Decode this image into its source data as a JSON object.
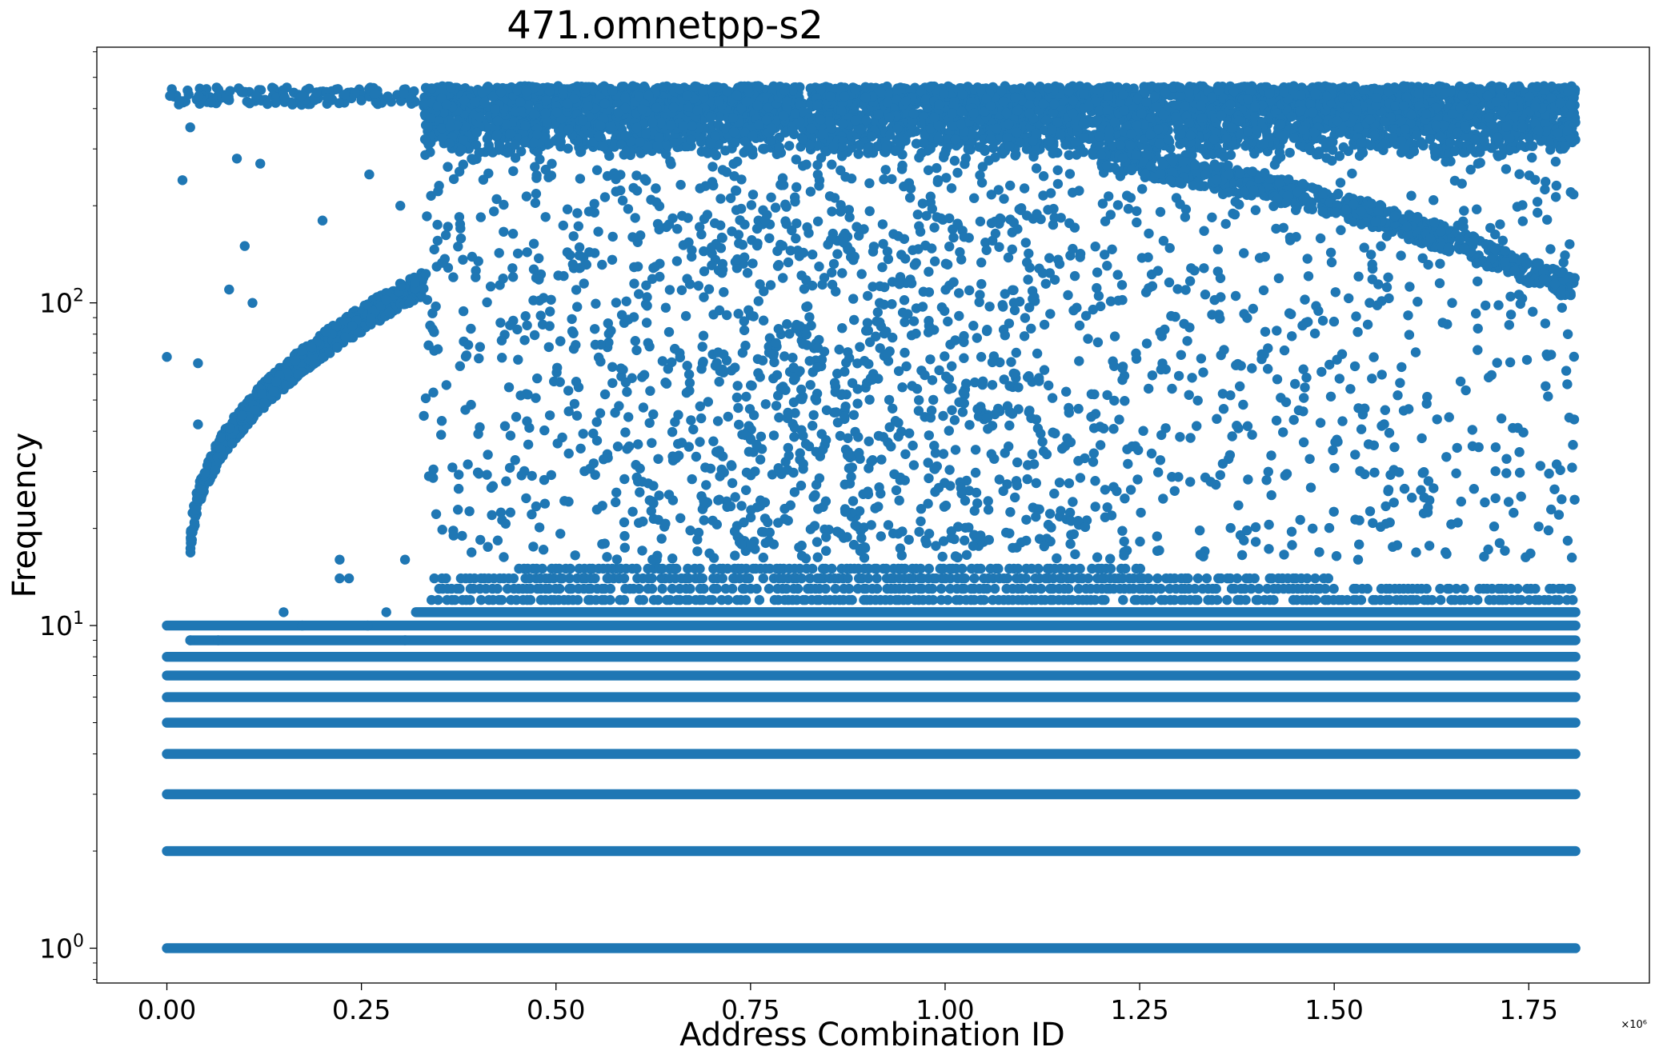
{
  "chart_data": {
    "type": "scatter",
    "title": "471.omnetpp-s2",
    "xlabel": "Address Combination ID",
    "ylabel": "Frequency",
    "y_scale": "log",
    "x_offset_label": "×10⁶",
    "xlim": [
      -0.09,
      1.905
    ],
    "ylim": [
      0.78,
      620
    ],
    "x_ticks": [
      {
        "value": 0.0,
        "label": "0.00"
      },
      {
        "value": 0.25,
        "label": "0.25"
      },
      {
        "value": 0.5,
        "label": "0.50"
      },
      {
        "value": 0.75,
        "label": "0.75"
      },
      {
        "value": 1.0,
        "label": "1.00"
      },
      {
        "value": 1.25,
        "label": "1.25"
      },
      {
        "value": 1.5,
        "label": "1.50"
      },
      {
        "value": 1.75,
        "label": "1.75"
      }
    ],
    "y_ticks": [
      {
        "value": 1,
        "base": "10",
        "exp": "0"
      },
      {
        "value": 10,
        "base": "10",
        "exp": "1"
      },
      {
        "value": 100,
        "base": "10",
        "exp": "2"
      }
    ],
    "grid": false,
    "marker_color": "#1f77b4",
    "series": [
      {
        "x_range": [
          0.0,
          1.81
        ],
        "bands": [
          1,
          2,
          3,
          4,
          5,
          6,
          7,
          8,
          9,
          10,
          11,
          12,
          13,
          14,
          15
        ],
        "top_cluster": [
          280,
          470
        ],
        "rising_arc": {
          "x": [
            0.03,
            0.33
          ],
          "y": [
            16,
            115
          ]
        },
        "falling_arc": {
          "x": [
            1.2,
            1.81
          ],
          "y": [
            270,
            110
          ]
        }
      }
    ]
  }
}
